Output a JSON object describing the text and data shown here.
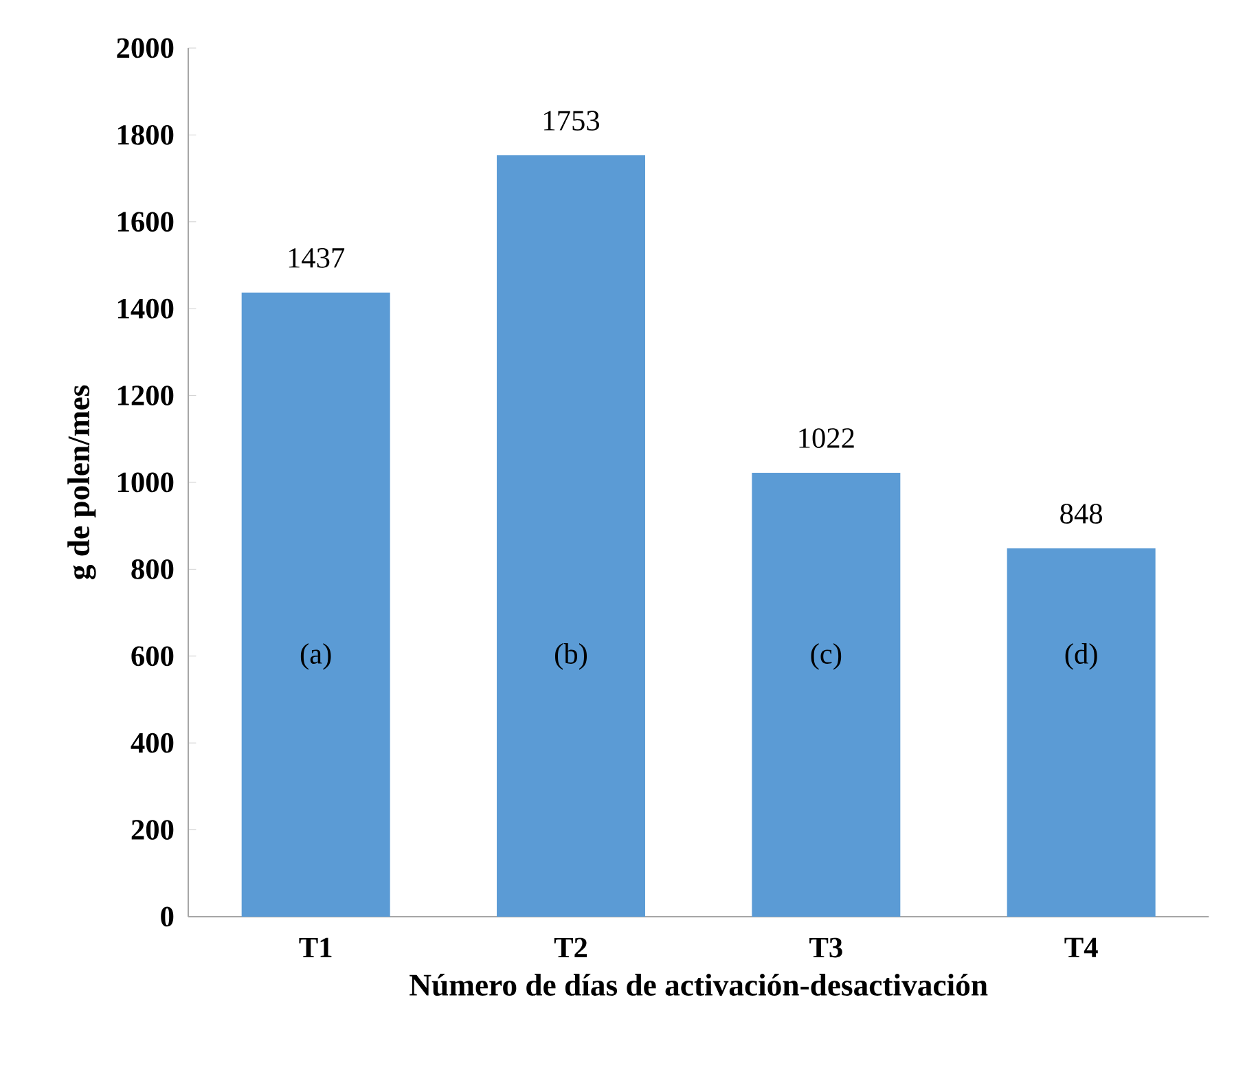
{
  "chart_data": {
    "type": "bar",
    "xlabel": "Número de días de activación-desactivación",
    "ylabel": "g de polen/mes",
    "categories": [
      "T1",
      "T2",
      "T3",
      "T4"
    ],
    "values": [
      1437,
      1753,
      1022,
      848
    ],
    "color": "#5b9bd5",
    "ylim": [
      0,
      2000
    ],
    "yticks": [
      0,
      200,
      400,
      600,
      800,
      1000,
      1200,
      1400,
      1600,
      1800,
      2000
    ],
    "grid": false,
    "data_labels": true,
    "annotations": [
      "(a)",
      "(b)",
      "(c)",
      "(d)"
    ]
  }
}
